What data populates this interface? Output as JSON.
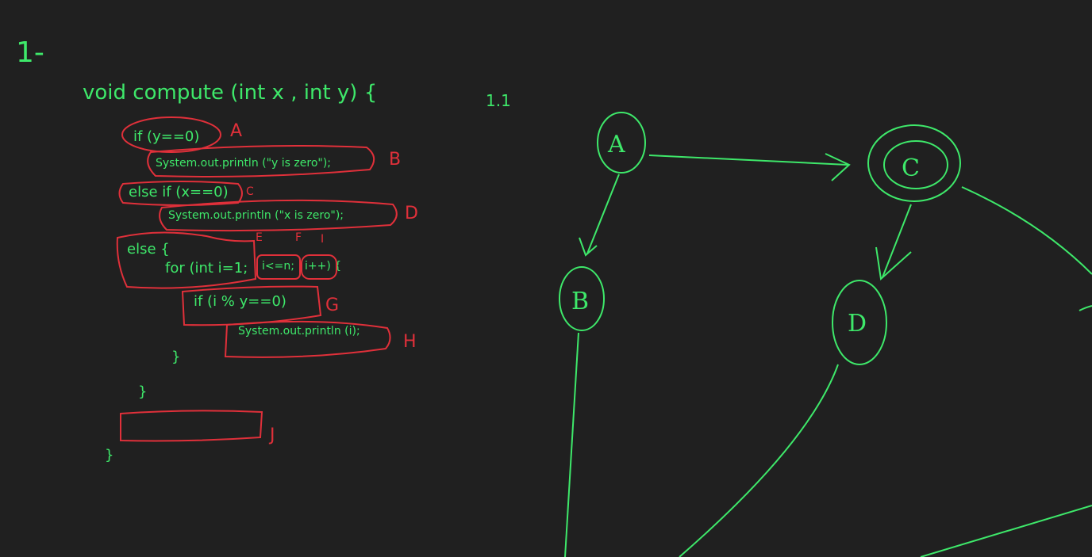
{
  "section_heading": "1-",
  "subsection_heading": "1.1",
  "code": {
    "signature": "void compute (int x , int y) {",
    "cond_a": "if (y==0)",
    "stmt_b": "System.out.println (\"y is zero\");",
    "cond_c": "else if (x==0)",
    "stmt_d": "System.out.println (\"x is zero\");",
    "else_open": "else {",
    "for_init": "for (int i=1;",
    "for_cond": "i<=n;",
    "for_inc": "i++) {",
    "cond_g": "if (i % y==0)",
    "stmt_h": "System.out.println (i);",
    "close_inner": "}",
    "close_else": "}",
    "close_method": "}"
  },
  "block_labels": {
    "a": "A",
    "b": "B",
    "c": "C",
    "d": "D",
    "e": "E",
    "f": "F",
    "i": "I",
    "g": "G",
    "h": "H",
    "j": "J"
  },
  "graph": {
    "nodes": [
      {
        "id": "node-a",
        "label": "A"
      },
      {
        "id": "node-b",
        "label": "B"
      },
      {
        "id": "node-c",
        "label": "C"
      },
      {
        "id": "node-d",
        "label": "D"
      }
    ],
    "edges": [
      {
        "from": "A",
        "to": "C"
      },
      {
        "from": "A",
        "to": "B"
      },
      {
        "from": "C",
        "to": "D"
      }
    ]
  },
  "colors": {
    "background": "#202020",
    "green_ink": "#3ee86a",
    "red_ink": "#e0303a"
  }
}
